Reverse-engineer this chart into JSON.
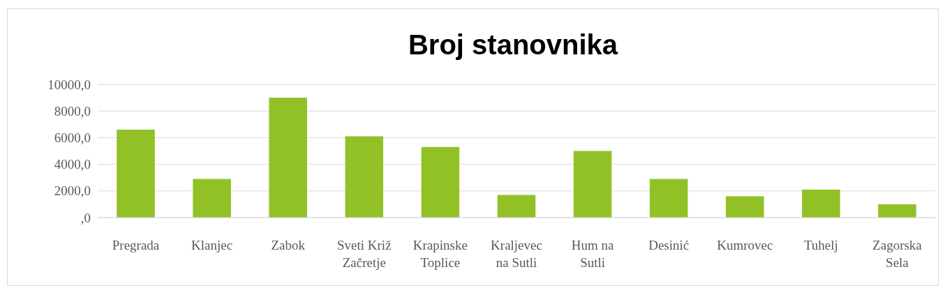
{
  "chart_data": {
    "type": "bar",
    "title": "Broj stanovnika",
    "categories": [
      "Pregrada",
      "Klanjec",
      "Zabok",
      "Sveti Križ Začretje",
      "Krapinske Toplice",
      "Kraljevec na Sutli",
      "Hum na Sutli",
      "Desinić",
      "Kumrovec",
      "Tuhelj",
      "Zagorska Sela"
    ],
    "values": [
      6600,
      2900,
      9000,
      6100,
      5300,
      1700,
      5000,
      2900,
      1600,
      2100,
      1000
    ],
    "color": "#92c127",
    "ylim": [
      0,
      10000
    ],
    "yticks": [
      {
        "value": 0,
        "label": ",0"
      },
      {
        "value": 2000,
        "label": "2000,0"
      },
      {
        "value": 4000,
        "label": "4000,0"
      },
      {
        "value": 6000,
        "label": "6000,0"
      },
      {
        "value": 8000,
        "label": "8000,0"
      },
      {
        "value": 10000,
        "label": "10000,0"
      }
    ],
    "grid": "y"
  }
}
